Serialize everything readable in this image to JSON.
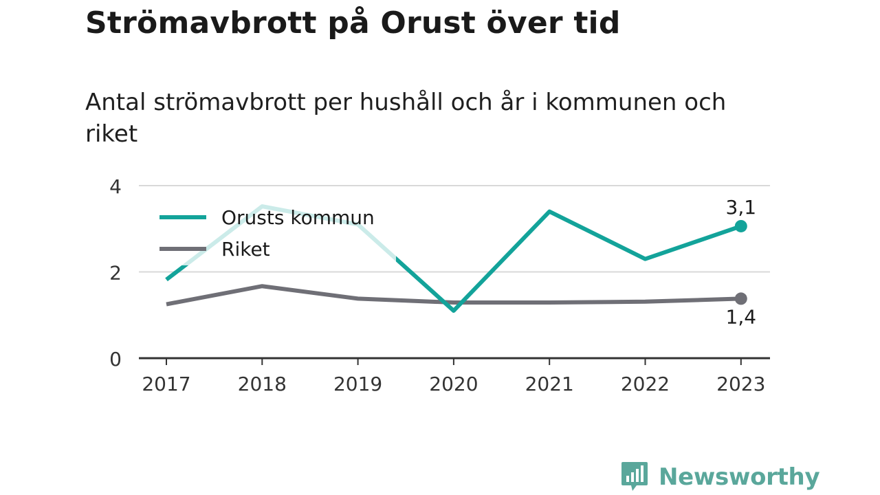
{
  "header": {
    "title": "Strömavbrott på Orust över tid",
    "subtitle": "Antal strömavbrott per hushåll och år i kommunen och riket"
  },
  "brand": {
    "name": "Newsworthy",
    "icon": "newsworthy-bar-chart-icon"
  },
  "colors": {
    "kommun": "#13a39a",
    "riket": "#6f6f76",
    "grid": "#d8d8d8",
    "axis": "#333333"
  },
  "chart_data": {
    "type": "line",
    "categories": [
      "2017",
      "2018",
      "2019",
      "2020",
      "2021",
      "2022",
      "2023"
    ],
    "ylim": [
      0,
      4
    ],
    "yticks": [
      "0",
      "2",
      "4"
    ],
    "grid": true,
    "legend": "top-left",
    "series": [
      {
        "name": "Orusts kommun",
        "color": "#13a39a",
        "values": [
          1.82,
          3.52,
          3.1,
          1.1,
          3.4,
          2.3,
          3.06
        ],
        "end_label": "3,1"
      },
      {
        "name": "Riket",
        "color": "#6f6f76",
        "values": [
          1.25,
          1.67,
          1.38,
          1.29,
          1.29,
          1.31,
          1.38
        ],
        "end_label": "1,4"
      }
    ]
  }
}
